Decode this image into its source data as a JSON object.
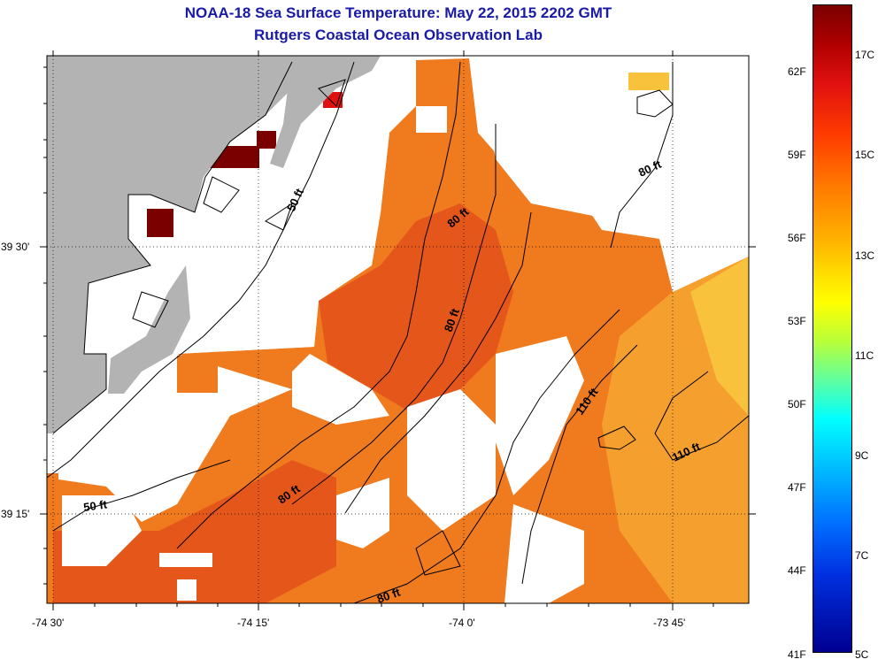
{
  "header": {
    "title": "NOAA-18 Sea Surface Temperature:  May 22, 2015 2202 GMT",
    "subtitle": "Rutgers Coastal Ocean Observation Lab"
  },
  "axes": {
    "x_ticks": [
      {
        "label": "-74 30'",
        "lon": -74.5
      },
      {
        "label": "-74 15'",
        "lon": -74.25
      },
      {
        "label": "-74 0'",
        "lon": -74.0
      },
      {
        "label": "-73 45'",
        "lon": -73.75
      }
    ],
    "y_ticks": [
      {
        "label": "39 30'",
        "lat": 39.5
      },
      {
        "label": "39 15'",
        "lat": 39.25
      }
    ]
  },
  "contours": [
    {
      "label": "50 ft"
    },
    {
      "label": "50 ft"
    },
    {
      "label": "80 ft"
    },
    {
      "label": "80 ft"
    },
    {
      "label": "80 ft"
    },
    {
      "label": "80 ft"
    },
    {
      "label": "80 ft"
    },
    {
      "label": "110 ft"
    },
    {
      "label": "110 ft"
    }
  ],
  "colorbar": {
    "fahrenheit": [
      "62F",
      "59F",
      "56F",
      "53F",
      "50F",
      "47F",
      "44F",
      "41F"
    ],
    "celsius": [
      "17C",
      "15C",
      "13C",
      "11C",
      "9C",
      "7C",
      "5C"
    ]
  },
  "colors": {
    "land": "#b3b3b3",
    "cloud": "#ffffff",
    "warm_sst": "#f07a1e",
    "warmer_sst": "#e85d14",
    "cool_sst": "#f7a93a",
    "hot_spot": "#7a0000",
    "title": "#1a1aa8"
  }
}
